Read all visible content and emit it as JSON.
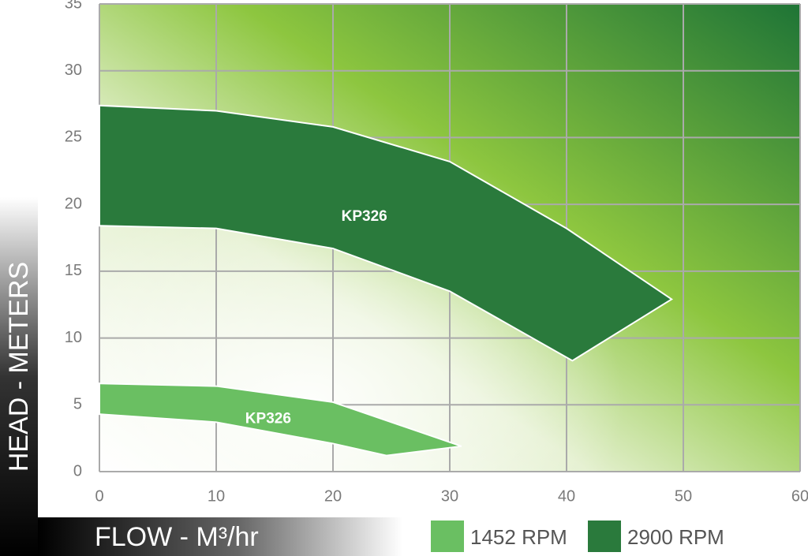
{
  "chart_data": {
    "type": "area",
    "x_label": "FLOW - M³/hr",
    "y_label": "HEAD - METERS",
    "xlim": [
      0,
      60
    ],
    "ylim": [
      0,
      35
    ],
    "xticks": [
      0,
      10,
      20,
      30,
      40,
      50,
      60
    ],
    "yticks": [
      0,
      5,
      10,
      15,
      20,
      25,
      30,
      35
    ],
    "grid": true,
    "legend": "bottom-right",
    "series": [
      {
        "name": "1452 RPM",
        "label": "KP326",
        "color": "#6abf62",
        "x": [
          0,
          10,
          20,
          31,
          24.6,
          20,
          10,
          0
        ],
        "y": [
          6.6,
          6.4,
          5.2,
          1.9,
          1.2,
          2.1,
          3.7,
          4.3
        ]
      },
      {
        "name": "2900 RPM",
        "label": "KP326",
        "color": "#2a7a3c",
        "x": [
          0,
          10,
          20,
          30,
          40,
          49,
          40.5,
          30,
          20,
          10,
          0
        ],
        "y": [
          27.4,
          27,
          25.8,
          23.2,
          18.2,
          12.9,
          8.3,
          13.5,
          16.7,
          18.2,
          18.4
        ]
      }
    ]
  }
}
